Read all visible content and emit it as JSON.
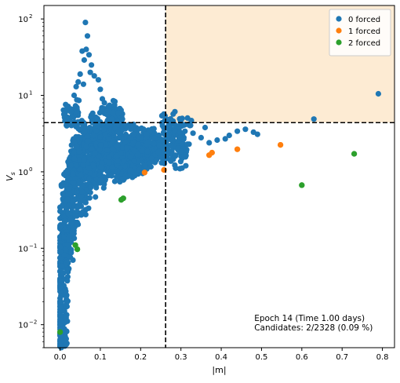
{
  "chart_data": {
    "type": "scatter",
    "xlabel": "|m|",
    "ylabel": "V_s",
    "xlim": [
      -0.04,
      0.83
    ],
    "ylim": [
      0.005,
      150
    ],
    "yscale": "log",
    "x_ticks": [
      0.0,
      0.1,
      0.2,
      0.3,
      0.4,
      0.5,
      0.6,
      0.7,
      0.8
    ],
    "x_tick_labels": [
      "0.0",
      "0.1",
      "0.2",
      "0.3",
      "0.4",
      "0.5",
      "0.6",
      "0.7",
      "0.8"
    ],
    "y_ticks": [
      0.01,
      0.1,
      1,
      10,
      100
    ],
    "y_tick_labels": [
      "10",
      "10",
      "10",
      "10",
      "10"
    ],
    "y_tick_exponents": [
      "−2",
      "−1",
      "0",
      "1",
      "2"
    ],
    "threshold_x": 0.262,
    "threshold_y": 4.4,
    "region_color": "#fdebd3",
    "legend_position": "top-right",
    "legend": [
      {
        "label": "0 forced",
        "color": "#1f77b4"
      },
      {
        "label": "1 forced",
        "color": "#ff7f0e"
      },
      {
        "label": "2 forced",
        "color": "#2ca02c"
      }
    ],
    "annotation": [
      "Epoch 14 (Time 1.00 days)",
      "Candidates: 2/2328 (0.09 %)"
    ],
    "series": [
      {
        "name": "0 forced",
        "color": "#1f77b4",
        "values": [
          [
            0.063,
            90
          ],
          [
            0.068,
            60
          ],
          [
            0.055,
            38
          ],
          [
            0.065,
            40
          ],
          [
            0.072,
            34
          ],
          [
            0.078,
            25
          ],
          [
            0.06,
            29
          ],
          [
            0.075,
            20
          ],
          [
            0.05,
            19
          ],
          [
            0.085,
            18
          ],
          [
            0.045,
            15
          ],
          [
            0.095,
            16
          ],
          [
            0.04,
            13
          ],
          [
            0.1,
            12
          ],
          [
            0.058,
            14
          ],
          [
            0.105,
            9
          ],
          [
            0.035,
            10
          ],
          [
            0.11,
            8
          ],
          [
            0.03,
            6.5
          ],
          [
            0.12,
            6
          ],
          [
            0.025,
            5
          ],
          [
            0.13,
            5
          ],
          [
            0.14,
            4.5
          ],
          [
            0.12,
            3.5
          ],
          [
            0.15,
            3.2
          ],
          [
            0.18,
            2.9
          ],
          [
            0.2,
            2.7
          ],
          [
            0.22,
            2.5
          ],
          [
            0.24,
            2.3
          ],
          [
            0.26,
            2.2
          ],
          [
            0.28,
            2.4
          ],
          [
            0.3,
            2.1
          ],
          [
            0.32,
            2.3
          ],
          [
            0.33,
            3.2
          ],
          [
            0.35,
            2.8
          ],
          [
            0.37,
            2.4
          ],
          [
            0.39,
            2.6
          ],
          [
            0.41,
            2.7
          ],
          [
            0.42,
            3.0
          ],
          [
            0.44,
            3.4
          ],
          [
            0.46,
            3.6
          ],
          [
            0.48,
            3.3
          ],
          [
            0.49,
            3.1
          ],
          [
            0.27,
            4.1
          ],
          [
            0.29,
            3.5
          ],
          [
            0.31,
            3.4
          ],
          [
            0.36,
            3.8
          ],
          [
            0.63,
            4.9
          ],
          [
            0.79,
            10.5
          ],
          [
            0.0,
            0.006
          ],
          [
            0.0,
            0.0075
          ],
          [
            0.0,
            0.01
          ],
          [
            0.001,
            0.015
          ],
          [
            0.002,
            0.02
          ],
          [
            0.003,
            0.03
          ],
          [
            0.004,
            0.045
          ],
          [
            0.005,
            0.06
          ],
          [
            0.006,
            0.08
          ],
          [
            0.008,
            0.11
          ],
          [
            0.01,
            0.15
          ],
          [
            0.012,
            0.2
          ],
          [
            0.015,
            0.28
          ],
          [
            0.018,
            0.38
          ],
          [
            0.02,
            0.5
          ],
          [
            0.025,
            0.7
          ],
          [
            0.03,
            0.9
          ],
          [
            0.035,
            1.1
          ],
          [
            0.04,
            1.4
          ],
          [
            0.045,
            1.8
          ],
          [
            0.05,
            2.3
          ],
          [
            0.055,
            2.8
          ],
          [
            0.04,
            0.6
          ],
          [
            0.06,
            0.8
          ],
          [
            0.07,
            1.0
          ],
          [
            0.08,
            1.3
          ],
          [
            0.09,
            1.6
          ],
          [
            0.1,
            2.0
          ],
          [
            0.11,
            1.8
          ],
          [
            0.12,
            1.5
          ],
          [
            0.13,
            1.3
          ],
          [
            0.14,
            1.2
          ],
          [
            0.15,
            1.1
          ],
          [
            0.16,
            1.2
          ],
          [
            0.17,
            1.3
          ],
          [
            0.18,
            1.25
          ],
          [
            0.19,
            1.4
          ],
          [
            0.2,
            1.5
          ],
          [
            0.21,
            1.6
          ],
          [
            0.22,
            1.7
          ],
          [
            0.23,
            1.8
          ],
          [
            0.25,
            1.9
          ],
          [
            0.27,
            1.8
          ],
          [
            0.3,
            1.6
          ],
          [
            0.1,
            0.9
          ],
          [
            0.08,
            0.7
          ],
          [
            0.06,
            0.5
          ],
          [
            0.05,
            0.4
          ],
          [
            0.03,
            0.3
          ],
          [
            0.025,
            0.2
          ],
          [
            0.02,
            0.13
          ],
          [
            0.015,
            0.09
          ],
          [
            0.07,
            3.0
          ],
          [
            0.09,
            4.0
          ],
          [
            0.05,
            3.5
          ],
          [
            0.08,
            2.5
          ],
          [
            0.11,
            3.2
          ],
          [
            0.13,
            2.4
          ],
          [
            0.16,
            2.0
          ],
          [
            0.065,
            1.5
          ],
          [
            0.075,
            2.0
          ],
          [
            0.045,
            1.0
          ],
          [
            0.035,
            0.8
          ],
          [
            0.055,
            1.2
          ],
          [
            0.085,
            1.1
          ],
          [
            0.095,
            1.4
          ],
          [
            0.105,
            1.7
          ],
          [
            0.115,
            2.3
          ],
          [
            0.125,
            2.0
          ],
          [
            0.135,
            1.7
          ],
          [
            0.145,
            1.5
          ],
          [
            0.155,
            1.4
          ],
          [
            0.165,
            1.6
          ],
          [
            0.175,
            1.8
          ],
          [
            0.185,
            2.0
          ],
          [
            0.195,
            2.2
          ],
          [
            0.205,
            2.3
          ]
        ]
      },
      {
        "name": "1 forced",
        "color": "#ff7f0e",
        "values": [
          [
            0.21,
            0.98
          ],
          [
            0.258,
            1.06
          ],
          [
            0.37,
            1.65
          ],
          [
            0.377,
            1.78
          ],
          [
            0.44,
            1.97
          ],
          [
            0.547,
            2.25
          ]
        ]
      },
      {
        "name": "2 forced",
        "color": "#2ca02c",
        "values": [
          [
            0.0,
            0.008
          ],
          [
            0.038,
            0.11
          ],
          [
            0.043,
            0.097
          ],
          [
            0.152,
            0.43
          ],
          [
            0.157,
            0.45
          ],
          [
            0.6,
            0.67
          ],
          [
            0.73,
            1.72
          ]
        ]
      }
    ]
  }
}
